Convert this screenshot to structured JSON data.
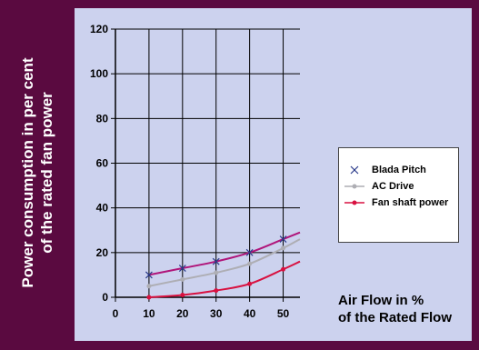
{
  "chart_data": {
    "type": "line",
    "ylabel_lines": [
      "Power consumption in per cent",
      "of the rated fan power"
    ],
    "xlabel_lines": [
      "Air Flow in %",
      "of the Rated Flow"
    ],
    "xlim": [
      0,
      55
    ],
    "ylim": [
      0,
      120
    ],
    "x_ticks": [
      0,
      10,
      20,
      30,
      40,
      50
    ],
    "y_ticks": [
      0,
      20,
      40,
      60,
      80,
      100,
      120
    ],
    "grid": true,
    "legend_position": "right",
    "series": [
      {
        "name": "Blada Pitch",
        "marker": "x",
        "color": "#b0157a",
        "marker_color": "#2a3a8a",
        "x": [
          10,
          20,
          30,
          40,
          50,
          55
        ],
        "y": [
          10,
          13,
          16,
          20,
          26,
          29
        ]
      },
      {
        "name": "AC Drive",
        "marker": "dot",
        "color": "#aeaeb4",
        "x": [
          10,
          20,
          30,
          40,
          50,
          55
        ],
        "y": [
          5,
          8,
          11,
          15,
          22,
          26
        ]
      },
      {
        "name": "Fan shaft power",
        "marker": "dot",
        "color": "#d81140",
        "x": [
          10,
          20,
          30,
          40,
          50,
          55
        ],
        "y": [
          0,
          1,
          3,
          6,
          12.5,
          16
        ]
      }
    ]
  }
}
